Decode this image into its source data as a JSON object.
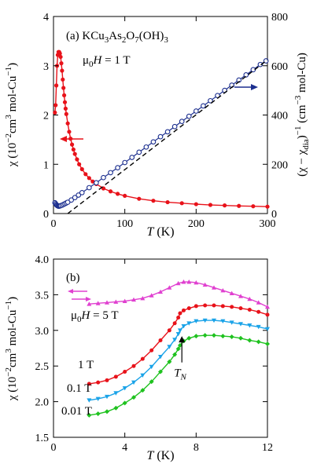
{
  "chart_data": [
    {
      "type": "scatter",
      "panel_label": "(a) KCu3As2O7(OH)3",
      "annotation_field": "μ0H = 1 T",
      "xlabel": "T (K)",
      "ylabel_left": "χ (10⁻² cm³ mol-Cu⁻¹)",
      "ylabel_right": "(χ − χdia)⁻¹ (cm⁻³ mol-Cu)",
      "xlim": [
        0,
        300
      ],
      "ylim_left": [
        0,
        4
      ],
      "ylim_right": [
        0,
        800
      ],
      "xticks": [
        "0",
        "100",
        "200",
        "300"
      ],
      "yticks_left": [
        "0",
        "1",
        "2",
        "3",
        "4"
      ],
      "yticks_right": [
        "0",
        "200",
        "400",
        "600",
        "800"
      ],
      "series": [
        {
          "axis": "left",
          "color": "#e8121a",
          "marker": "circle-filled",
          "x": [
            2,
            3,
            4,
            5,
            6,
            7,
            8,
            9,
            10,
            11,
            12,
            13,
            14,
            15,
            16,
            17,
            18,
            20,
            22,
            24,
            26,
            28,
            30,
            33,
            36,
            40,
            45,
            50,
            55,
            60,
            70,
            80,
            90,
            100,
            120,
            140,
            160,
            180,
            200,
            220,
            240,
            260,
            280,
            300
          ],
          "values": [
            2.05,
            2.2,
            2.6,
            3.0,
            3.22,
            3.28,
            3.28,
            3.25,
            3.18,
            3.05,
            2.9,
            2.72,
            2.55,
            2.4,
            2.26,
            2.13,
            2.02,
            1.83,
            1.66,
            1.52,
            1.4,
            1.3,
            1.21,
            1.1,
            1.0,
            0.9,
            0.8,
            0.72,
            0.65,
            0.6,
            0.51,
            0.45,
            0.4,
            0.36,
            0.3,
            0.26,
            0.23,
            0.21,
            0.19,
            0.175,
            0.165,
            0.155,
            0.148,
            0.14
          ]
        },
        {
          "axis": "right",
          "color": "#1c2f8f",
          "marker": "circle-open",
          "x": [
            2,
            3,
            4,
            5,
            6,
            7,
            8,
            9,
            10,
            12,
            14,
            16,
            18,
            20,
            25,
            30,
            35,
            40,
            50,
            60,
            70,
            80,
            90,
            100,
            110,
            120,
            130,
            140,
            150,
            160,
            170,
            180,
            190,
            200,
            210,
            220,
            230,
            240,
            250,
            260,
            270,
            280,
            290,
            298
          ],
          "values": [
            44,
            40,
            36,
            33,
            31,
            30,
            30,
            31,
            32,
            34,
            37,
            40,
            43,
            46,
            55,
            65,
            75,
            85,
            105,
            125,
            146,
            166,
            186,
            207,
            228,
            249,
            270,
            291,
            312,
            332,
            353,
            374,
            395,
            416,
            437,
            458,
            479,
            500,
            521,
            542,
            563,
            584,
            605,
            620
          ]
        }
      ],
      "fit_line": {
        "axis": "right",
        "style": "dashed",
        "x": [
          20,
          300
        ],
        "values": [
          0,
          624
        ]
      },
      "arrows": [
        {
          "points_to": "left axis",
          "color": "#e8121a"
        },
        {
          "points_to": "right axis",
          "color": "#1c2f8f"
        }
      ]
    },
    {
      "type": "line",
      "panel_label": "(b)",
      "xlabel": "T (K)",
      "ylabel": "χ (10⁻² cm³ mol-Cu⁻¹)",
      "xlim": [
        0,
        12
      ],
      "ylim": [
        1.5,
        4.0
      ],
      "xticks": [
        "0",
        "4",
        "8",
        "12"
      ],
      "yticks": [
        "1.5",
        "2.0",
        "2.5",
        "3.0",
        "3.5",
        "4.0"
      ],
      "annotations": {
        "field": "μ0H = 5 T",
        "tn": "TN"
      },
      "series": [
        {
          "name": "μ0H = 5 T",
          "color": "#e040d0",
          "marker": "triangle-up",
          "x": [
            2,
            2.5,
            3,
            3.5,
            4,
            4.5,
            5,
            5.5,
            6,
            6.5,
            7,
            7.3,
            7.6,
            8,
            8.5,
            9,
            9.5,
            10,
            10.5,
            11,
            11.5,
            12
          ],
          "values": [
            3.37,
            3.38,
            3.39,
            3.4,
            3.41,
            3.43,
            3.45,
            3.49,
            3.54,
            3.6,
            3.66,
            3.68,
            3.68,
            3.67,
            3.64,
            3.6,
            3.56,
            3.52,
            3.48,
            3.44,
            3.39,
            3.33
          ]
        },
        {
          "name": "1 T",
          "color": "#e8121a",
          "marker": "circle-filled",
          "x": [
            2,
            2.5,
            3,
            3.5,
            4,
            4.5,
            5,
            5.5,
            6,
            6.5,
            6.8,
            7,
            7.1,
            7.3,
            7.6,
            8,
            8.5,
            9,
            9.5,
            10,
            10.5,
            11,
            11.5,
            12
          ],
          "values": [
            2.25,
            2.27,
            2.3,
            2.35,
            2.42,
            2.5,
            2.6,
            2.72,
            2.86,
            3.0,
            3.1,
            3.18,
            3.24,
            3.28,
            3.31,
            3.34,
            3.35,
            3.35,
            3.34,
            3.33,
            3.31,
            3.29,
            3.26,
            3.22
          ]
        },
        {
          "name": "0.1 T",
          "color": "#1aa3e8",
          "marker": "triangle-down",
          "x": [
            2,
            2.5,
            3,
            3.5,
            4,
            4.5,
            5,
            5.5,
            6,
            6.5,
            6.8,
            7,
            7.1,
            7.3,
            7.6,
            8,
            8.5,
            9,
            9.5,
            10,
            10.5,
            11,
            11.5,
            12
          ],
          "values": [
            2.02,
            2.04,
            2.07,
            2.12,
            2.19,
            2.27,
            2.37,
            2.49,
            2.63,
            2.77,
            2.87,
            2.95,
            3.0,
            3.06,
            3.1,
            3.13,
            3.14,
            3.14,
            3.13,
            3.11,
            3.09,
            3.07,
            3.05,
            3.02
          ]
        },
        {
          "name": "0.01 T",
          "color": "#1fc21f",
          "marker": "diamond",
          "x": [
            2,
            2.5,
            3,
            3.5,
            4,
            4.5,
            5,
            5.5,
            6,
            6.5,
            6.8,
            7,
            7.1,
            7.3,
            7.6,
            8,
            8.5,
            9,
            9.5,
            10,
            10.5,
            11,
            11.5,
            12
          ],
          "values": [
            1.81,
            1.83,
            1.86,
            1.91,
            1.98,
            2.06,
            2.16,
            2.28,
            2.42,
            2.56,
            2.66,
            2.74,
            2.79,
            2.85,
            2.89,
            2.92,
            2.93,
            2.93,
            2.92,
            2.91,
            2.89,
            2.86,
            2.84,
            2.81
          ]
        }
      ],
      "series_labels": [
        "μ0H = 5 T",
        "1 T",
        "0.1 T",
        "0.01 T"
      ],
      "tn_arrow": {
        "x": 7.2,
        "from": 2.55,
        "to": 2.92
      }
    }
  ]
}
